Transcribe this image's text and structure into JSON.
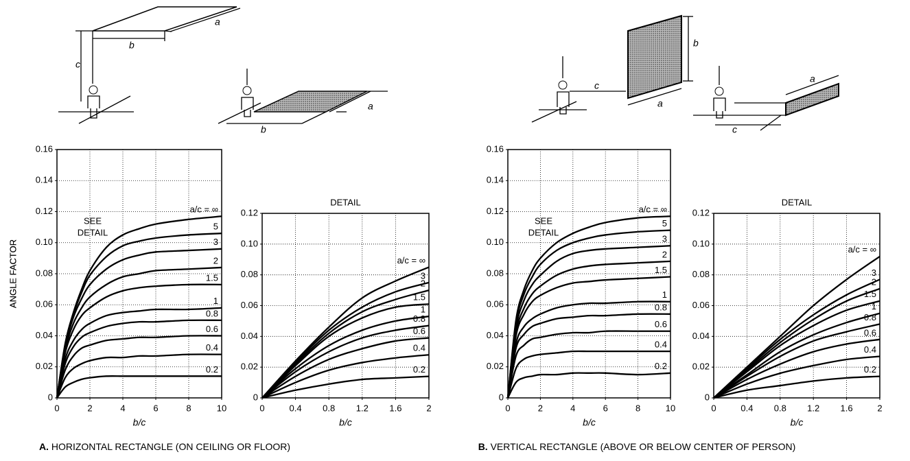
{
  "figure": {
    "captions": [
      {
        "letter": "A.",
        "text": "HORIZONTAL RECTANGLE (ON CEILING OR FLOOR)"
      },
      {
        "letter": "B.",
        "text": "VERTICAL RECTANGLE (ABOVE OR BELOW CENTER OF PERSON)"
      }
    ],
    "diagrams": [
      {
        "labels": [
          "a",
          "b",
          "c"
        ]
      },
      {
        "labels": [
          "a",
          "b"
        ]
      },
      {
        "labels": [
          "b",
          "c",
          "a"
        ]
      },
      {
        "labels": [
          "a",
          "c"
        ]
      }
    ]
  },
  "chart_data": [
    {
      "type": "line",
      "x": [
        0,
        0.5,
        1,
        1.5,
        2,
        3,
        4,
        5,
        6,
        8,
        10
      ],
      "xlim": [
        0,
        10
      ],
      "xticks": [
        0,
        2,
        4,
        6,
        8,
        10
      ],
      "ylim": [
        0,
        0.16
      ],
      "yticks": [
        0,
        0.02,
        0.04,
        0.06,
        0.08,
        {
          "value": 0.1,
          "label": "0.10"
        },
        0.12,
        0.14,
        0.16
      ],
      "x_label": "b/c",
      "y_label": "ANGLE FACTOR",
      "annotation_lines": [
        "SEE",
        "DETAIL"
      ],
      "grid": true,
      "color": "#000000",
      "series": [
        {
          "name": "a/c = ∞",
          "values": [
            0,
            0.035,
            0.055,
            0.07,
            0.082,
            0.097,
            0.105,
            0.109,
            0.112,
            0.115,
            0.117
          ]
        },
        {
          "name": "5",
          "values": [
            0,
            0.034,
            0.054,
            0.068,
            0.079,
            0.091,
            0.098,
            0.101,
            0.103,
            0.105,
            0.106
          ]
        },
        {
          "name": "3",
          "values": [
            0,
            0.033,
            0.052,
            0.064,
            0.073,
            0.083,
            0.089,
            0.092,
            0.094,
            0.095,
            0.096
          ]
        },
        {
          "name": "2",
          "values": [
            0,
            0.031,
            0.048,
            0.058,
            0.065,
            0.073,
            0.078,
            0.08,
            0.082,
            0.083,
            0.084
          ]
        },
        {
          "name": "1.5",
          "values": [
            0,
            0.029,
            0.044,
            0.053,
            0.058,
            0.065,
            0.069,
            0.071,
            0.072,
            0.073,
            0.073
          ]
        },
        {
          "name": "1",
          "values": [
            0,
            0.025,
            0.037,
            0.044,
            0.048,
            0.053,
            0.055,
            0.056,
            0.057,
            0.057,
            0.058
          ]
        },
        {
          "name": "0.8",
          "values": [
            0,
            0.022,
            0.033,
            0.039,
            0.042,
            0.046,
            0.048,
            0.049,
            0.049,
            0.05,
            0.05
          ]
        },
        {
          "name": "0.6",
          "values": [
            0,
            0.018,
            0.027,
            0.032,
            0.034,
            0.037,
            0.038,
            0.039,
            0.039,
            0.04,
            0.04
          ]
        },
        {
          "name": "0.4",
          "values": [
            0,
            0.013,
            0.019,
            0.022,
            0.024,
            0.026,
            0.026,
            0.027,
            0.027,
            0.028,
            0.028
          ]
        },
        {
          "name": "0.2",
          "values": [
            0,
            0.007,
            0.01,
            0.012,
            0.013,
            0.014,
            0.014,
            0.014,
            0.014,
            0.014,
            0.014
          ]
        }
      ]
    },
    {
      "type": "line",
      "title": "DETAIL",
      "x": [
        0,
        0.4,
        0.8,
        1.2,
        1.6,
        2
      ],
      "xlim": [
        0,
        2
      ],
      "xticks": [
        0,
        0.4,
        0.8,
        1.2,
        1.6,
        2
      ],
      "ylim": [
        0,
        0.12
      ],
      "yticks": [
        0,
        0.02,
        0.04,
        0.06,
        0.08,
        {
          "value": 0.1,
          "label": "0.10"
        },
        0.12
      ],
      "x_label": "b/c",
      "grid": true,
      "color": "#000000",
      "series": [
        {
          "name": "a/c = ∞",
          "values": [
            0,
            0.024,
            0.046,
            0.065,
            0.076,
            0.085
          ]
        },
        {
          "name": "3",
          "values": [
            0,
            0.023,
            0.044,
            0.059,
            0.069,
            0.075
          ]
        },
        {
          "name": "2",
          "values": [
            0,
            0.022,
            0.042,
            0.056,
            0.064,
            0.07
          ]
        },
        {
          "name": "1.5",
          "values": [
            0,
            0.021,
            0.04,
            0.052,
            0.059,
            0.061
          ]
        },
        {
          "name": "1",
          "values": [
            0,
            0.019,
            0.034,
            0.044,
            0.05,
            0.053
          ]
        },
        {
          "name": "0.8",
          "values": [
            0,
            0.017,
            0.03,
            0.039,
            0.044,
            0.047
          ]
        },
        {
          "name": "0.6",
          "values": [
            0,
            0.014,
            0.025,
            0.032,
            0.037,
            0.039
          ]
        },
        {
          "name": "0.4",
          "values": [
            0,
            0.01,
            0.018,
            0.023,
            0.026,
            0.028
          ]
        },
        {
          "name": "0.2",
          "values": [
            0,
            0.005,
            0.009,
            0.012,
            0.013,
            0.014
          ]
        }
      ]
    },
    {
      "type": "line",
      "x": [
        0,
        0.5,
        1,
        1.5,
        2,
        3,
        4,
        5,
        6,
        8,
        10
      ],
      "xlim": [
        0,
        10
      ],
      "xticks": [
        0,
        2,
        4,
        6,
        8,
        10
      ],
      "ylim": [
        0,
        0.16
      ],
      "yticks": [
        0,
        0.02,
        0.04,
        0.06,
        0.08,
        {
          "value": 0.1,
          "label": "0.10"
        },
        0.12,
        0.14,
        0.16
      ],
      "x_label": "b/c",
      "y_label": "ANGLE FACTOR",
      "annotation_lines": [
        "SEE",
        "DETAIL"
      ],
      "grid": true,
      "color": "#000000",
      "series": [
        {
          "name": "a/c = ∞",
          "values": [
            0,
            0.05,
            0.07,
            0.082,
            0.09,
            0.1,
            0.106,
            0.11,
            0.113,
            0.116,
            0.117
          ]
        },
        {
          "name": "5",
          "values": [
            0,
            0.048,
            0.067,
            0.078,
            0.086,
            0.095,
            0.1,
            0.103,
            0.105,
            0.107,
            0.108
          ]
        },
        {
          "name": "3",
          "values": [
            0,
            0.045,
            0.063,
            0.073,
            0.079,
            0.088,
            0.093,
            0.095,
            0.096,
            0.097,
            0.098
          ]
        },
        {
          "name": "2",
          "values": [
            0,
            0.042,
            0.058,
            0.067,
            0.072,
            0.079,
            0.083,
            0.085,
            0.086,
            0.087,
            0.088
          ]
        },
        {
          "name": "1.5",
          "values": [
            0,
            0.04,
            0.054,
            0.062,
            0.066,
            0.071,
            0.074,
            0.075,
            0.076,
            0.077,
            0.078
          ]
        },
        {
          "name": "1",
          "values": [
            0,
            0.035,
            0.046,
            0.051,
            0.054,
            0.058,
            0.06,
            0.061,
            0.061,
            0.062,
            0.062
          ]
        },
        {
          "name": "0.8",
          "values": [
            0,
            0.032,
            0.041,
            0.046,
            0.048,
            0.051,
            0.052,
            0.053,
            0.053,
            0.054,
            0.054
          ]
        },
        {
          "name": "0.6",
          "values": [
            0,
            0.027,
            0.034,
            0.038,
            0.039,
            0.041,
            0.042,
            0.042,
            0.043,
            0.043,
            0.043
          ]
        },
        {
          "name": "0.4",
          "values": [
            0,
            0.019,
            0.025,
            0.027,
            0.028,
            0.029,
            0.03,
            0.03,
            0.03,
            0.03,
            0.03
          ]
        },
        {
          "name": "0.2",
          "values": [
            0,
            0.01,
            0.013,
            0.014,
            0.015,
            0.015,
            0.016,
            0.016,
            0.016,
            0.015,
            0.016
          ]
        }
      ]
    },
    {
      "type": "line",
      "title": "DETAIL",
      "x": [
        0,
        0.4,
        0.8,
        1.2,
        1.6,
        2
      ],
      "xlim": [
        0,
        2
      ],
      "xticks": [
        0,
        0.4,
        0.8,
        1.2,
        1.6,
        2
      ],
      "ylim": [
        0,
        0.12
      ],
      "yticks": [
        0,
        0.02,
        0.04,
        0.06,
        0.08,
        {
          "value": 0.1,
          "label": "0.10"
        },
        0.12
      ],
      "x_label": "b/c",
      "grid": true,
      "color": "#000000",
      "series": [
        {
          "name": "a/c = ∞",
          "values": [
            0,
            0.02,
            0.04,
            0.06,
            0.077,
            0.092
          ]
        },
        {
          "name": "3",
          "values": [
            0,
            0.019,
            0.038,
            0.054,
            0.067,
            0.077
          ]
        },
        {
          "name": "2",
          "values": [
            0,
            0.018,
            0.036,
            0.051,
            0.063,
            0.071
          ]
        },
        {
          "name": "1.5",
          "values": [
            0,
            0.017,
            0.034,
            0.047,
            0.057,
            0.063
          ]
        },
        {
          "name": "1",
          "values": [
            0,
            0.015,
            0.03,
            0.041,
            0.049,
            0.055
          ]
        },
        {
          "name": "0.8",
          "values": [
            0,
            0.014,
            0.027,
            0.037,
            0.043,
            0.048
          ]
        },
        {
          "name": "0.6",
          "values": [
            0,
            0.012,
            0.022,
            0.03,
            0.035,
            0.038
          ]
        },
        {
          "name": "0.4",
          "values": [
            0,
            0.009,
            0.016,
            0.021,
            0.025,
            0.027
          ]
        },
        {
          "name": "0.2",
          "values": [
            0,
            0.005,
            0.008,
            0.011,
            0.013,
            0.014
          ]
        }
      ]
    }
  ]
}
